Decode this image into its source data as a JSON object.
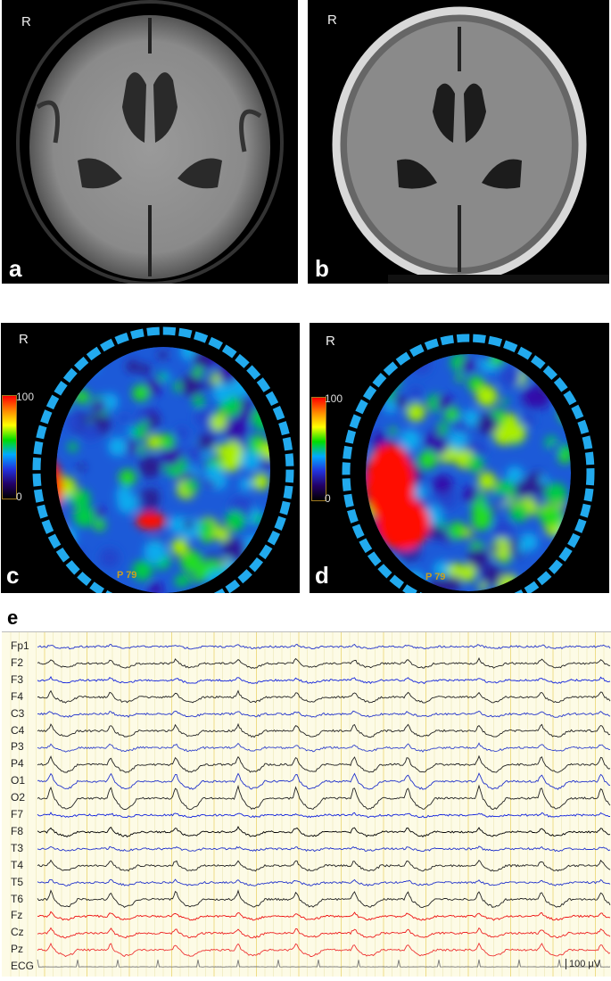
{
  "panels": {
    "a": {
      "label": "a",
      "orientation": "R"
    },
    "b": {
      "label": "b",
      "orientation": "R"
    },
    "c": {
      "label": "c",
      "orientation": "R",
      "colorbar_max": "100",
      "colorbar_min": "0",
      "slice": "P 79"
    },
    "d": {
      "label": "d",
      "orientation": "R",
      "colorbar_max": "100",
      "colorbar_min": "0",
      "slice": "P 79"
    },
    "e": {
      "label": "e",
      "scale_bar": "100 μV"
    }
  },
  "eeg_channels": [
    {
      "name": "Fp1",
      "color": "#2233cc"
    },
    {
      "name": "F2",
      "color": "#222222"
    },
    {
      "name": "F3",
      "color": "#1122dd"
    },
    {
      "name": "F4",
      "color": "#222222"
    },
    {
      "name": "C3",
      "color": "#2233cc"
    },
    {
      "name": "C4",
      "color": "#222222"
    },
    {
      "name": "P3",
      "color": "#3344cc"
    },
    {
      "name": "P4",
      "color": "#222222"
    },
    {
      "name": "O1",
      "color": "#2233cc"
    },
    {
      "name": "O2",
      "color": "#222222"
    },
    {
      "name": "F7",
      "color": "#1122dd"
    },
    {
      "name": "F8",
      "color": "#000000"
    },
    {
      "name": "T3",
      "color": "#2233cc"
    },
    {
      "name": "T4",
      "color": "#222222"
    },
    {
      "name": "T5",
      "color": "#2233cc"
    },
    {
      "name": "T6",
      "color": "#222222"
    },
    {
      "name": "Fz",
      "color": "#ee1111"
    },
    {
      "name": "Cz",
      "color": "#ee2222"
    },
    {
      "name": "Pz",
      "color": "#ee3333"
    },
    {
      "name": "ECG",
      "color": "#777777"
    }
  ]
}
